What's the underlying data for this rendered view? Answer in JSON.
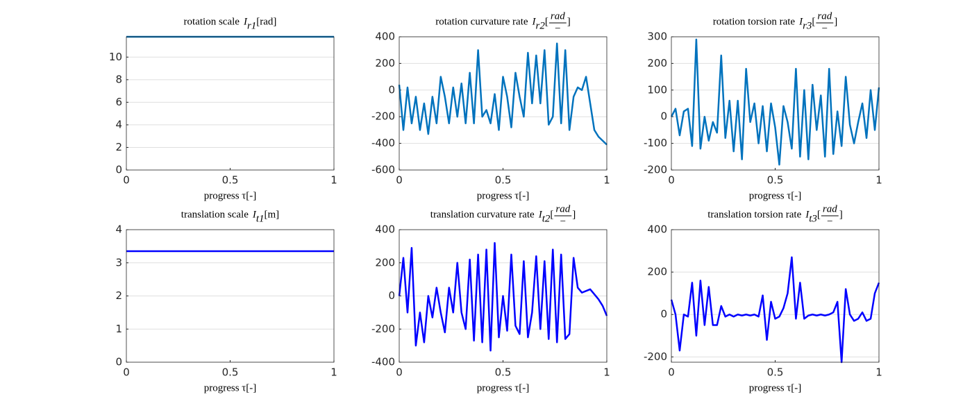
{
  "chart_data": [
    {
      "type": "line",
      "title": "rotation scale",
      "symbol": "I",
      "symbol_subscript": "r1",
      "unit": "[rad]",
      "xlabel": "progress τ[-]",
      "x": [
        0,
        1
      ],
      "series": [
        {
          "color": "#0072bd",
          "values": [
            11.8,
            11.8
          ]
        }
      ],
      "xlim": [
        0,
        1
      ],
      "xticks": [
        0,
        0.5,
        1
      ],
      "ylim": [
        0,
        11.8
      ],
      "yticks": [
        0,
        2,
        4,
        6,
        8,
        10
      ],
      "grid": "y"
    },
    {
      "type": "line",
      "title": "rotation curvature rate",
      "symbol": "I",
      "symbol_subscript": "r2",
      "unit": {
        "open": "[",
        "numerator": "rad",
        "denominator": "−",
        "close": "]"
      },
      "xlabel": "progress τ[-]",
      "x": [
        0,
        0.02,
        0.04,
        0.06,
        0.08,
        0.1,
        0.12,
        0.14,
        0.16,
        0.18,
        0.2,
        0.22,
        0.24,
        0.26,
        0.28,
        0.3,
        0.32,
        0.34,
        0.36,
        0.38,
        0.4,
        0.42,
        0.44,
        0.46,
        0.48,
        0.5,
        0.52,
        0.54,
        0.56,
        0.58,
        0.6,
        0.62,
        0.64,
        0.66,
        0.68,
        0.7,
        0.72,
        0.74,
        0.76,
        0.78,
        0.8,
        0.82,
        0.84,
        0.86,
        0.88,
        0.9,
        0.92,
        0.94,
        0.96,
        0.98,
        1
      ],
      "series": [
        {
          "color": "#0072bd",
          "values": [
            40,
            -300,
            20,
            -250,
            -50,
            -300,
            -100,
            -330,
            -50,
            -250,
            100,
            -50,
            -250,
            20,
            -200,
            50,
            -250,
            130,
            -250,
            300,
            -200,
            -150,
            -250,
            -30,
            -300,
            100,
            -50,
            -280,
            130,
            -50,
            -200,
            280,
            -100,
            260,
            -100,
            300,
            -260,
            -200,
            350,
            -250,
            300,
            -300,
            -50,
            20,
            0,
            100,
            -100,
            -300,
            -350,
            -380,
            -410
          ]
        }
      ],
      "xlim": [
        0,
        1
      ],
      "xticks": [
        0,
        0.5,
        1
      ],
      "ylim": [
        -600,
        400
      ],
      "yticks": [
        -600,
        -400,
        -200,
        0,
        200,
        400
      ],
      "grid": "y"
    },
    {
      "type": "line",
      "title": "rotation torsion rate",
      "symbol": "I",
      "symbol_subscript": "r3",
      "unit": {
        "open": "[",
        "numerator": "rad",
        "denominator": "−",
        "close": "]"
      },
      "xlabel": "progress τ[-]",
      "x": [
        0,
        0.02,
        0.04,
        0.06,
        0.08,
        0.1,
        0.12,
        0.14,
        0.16,
        0.18,
        0.2,
        0.22,
        0.24,
        0.26,
        0.28,
        0.3,
        0.32,
        0.34,
        0.36,
        0.38,
        0.4,
        0.42,
        0.44,
        0.46,
        0.48,
        0.5,
        0.52,
        0.54,
        0.56,
        0.58,
        0.6,
        0.62,
        0.64,
        0.66,
        0.68,
        0.7,
        0.72,
        0.74,
        0.76,
        0.78,
        0.8,
        0.82,
        0.84,
        0.86,
        0.88,
        0.9,
        0.92,
        0.94,
        0.96,
        0.98,
        1
      ],
      "series": [
        {
          "color": "#0072bd",
          "values": [
            0,
            30,
            -70,
            20,
            30,
            -110,
            290,
            -120,
            0,
            -90,
            -20,
            -60,
            230,
            -80,
            60,
            -130,
            60,
            -160,
            180,
            -20,
            50,
            -100,
            40,
            -130,
            50,
            -40,
            -180,
            40,
            -20,
            -120,
            180,
            -150,
            100,
            -160,
            120,
            -50,
            80,
            -150,
            180,
            -140,
            20,
            -110,
            150,
            -30,
            -100,
            -20,
            50,
            -80,
            100,
            -50,
            110
          ]
        }
      ],
      "xlim": [
        0,
        1
      ],
      "xticks": [
        0,
        0.5,
        1
      ],
      "ylim": [
        -200,
        300
      ],
      "yticks": [
        -200,
        -100,
        0,
        100,
        200,
        300
      ],
      "grid": "y"
    },
    {
      "type": "line",
      "title": "translation scale",
      "symbol": "I",
      "symbol_subscript": "t1",
      "unit": "[m]",
      "xlabel": "progress τ[-]",
      "x": [
        0,
        1
      ],
      "series": [
        {
          "color": "#0000ff",
          "values": [
            3.35,
            3.35
          ]
        }
      ],
      "xlim": [
        0,
        1
      ],
      "xticks": [
        0,
        0.5,
        1
      ],
      "ylim": [
        0,
        4
      ],
      "yticks": [
        0,
        1,
        2,
        3,
        4
      ],
      "grid": "y"
    },
    {
      "type": "line",
      "title": "translation curvature rate",
      "symbol": "I",
      "symbol_subscript": "t2",
      "unit": {
        "open": "[",
        "numerator": "rad",
        "denominator": "−",
        "close": "]"
      },
      "xlabel": "progress τ[-]",
      "x": [
        0,
        0.02,
        0.04,
        0.06,
        0.08,
        0.1,
        0.12,
        0.14,
        0.16,
        0.18,
        0.2,
        0.22,
        0.24,
        0.26,
        0.28,
        0.3,
        0.32,
        0.34,
        0.36,
        0.38,
        0.4,
        0.42,
        0.44,
        0.46,
        0.48,
        0.5,
        0.52,
        0.54,
        0.56,
        0.58,
        0.6,
        0.62,
        0.64,
        0.66,
        0.68,
        0.7,
        0.72,
        0.74,
        0.76,
        0.78,
        0.8,
        0.82,
        0.84,
        0.86,
        0.88,
        0.9,
        0.92,
        0.94,
        0.96,
        0.98,
        1
      ],
      "series": [
        {
          "color": "#0000ff",
          "values": [
            0,
            230,
            -100,
            290,
            -300,
            -100,
            -280,
            0,
            -130,
            50,
            -100,
            -220,
            50,
            -100,
            200,
            -100,
            -200,
            220,
            -270,
            250,
            -280,
            280,
            -330,
            320,
            -250,
            0,
            -210,
            250,
            -180,
            -230,
            210,
            -250,
            -100,
            240,
            -200,
            210,
            -260,
            280,
            -280,
            250,
            -260,
            -230,
            230,
            50,
            20,
            30,
            40,
            10,
            -20,
            -60,
            -120
          ]
        }
      ],
      "xlim": [
        0,
        1
      ],
      "xticks": [
        0,
        0.5,
        1
      ],
      "ylim": [
        -400,
        400
      ],
      "yticks": [
        -400,
        -200,
        0,
        200,
        400
      ],
      "grid": "y"
    },
    {
      "type": "line",
      "title": "translation torsion rate",
      "symbol": "I",
      "symbol_subscript": "t3",
      "unit": {
        "open": "[",
        "numerator": "rad",
        "denominator": "−",
        "close": "]"
      },
      "xlabel": "progress τ[-]",
      "x": [
        0,
        0.02,
        0.04,
        0.06,
        0.08,
        0.1,
        0.12,
        0.14,
        0.16,
        0.18,
        0.2,
        0.22,
        0.24,
        0.26,
        0.28,
        0.3,
        0.32,
        0.34,
        0.36,
        0.38,
        0.4,
        0.42,
        0.44,
        0.46,
        0.48,
        0.5,
        0.52,
        0.54,
        0.56,
        0.58,
        0.6,
        0.62,
        0.64,
        0.66,
        0.68,
        0.7,
        0.72,
        0.74,
        0.76,
        0.78,
        0.8,
        0.82,
        0.84,
        0.86,
        0.88,
        0.9,
        0.92,
        0.94,
        0.96,
        0.98,
        1
      ],
      "series": [
        {
          "color": "#0000ff",
          "values": [
            70,
            0,
            -170,
            0,
            -10,
            150,
            -100,
            160,
            -50,
            130,
            -50,
            -50,
            40,
            -10,
            0,
            -10,
            0,
            -5,
            0,
            -5,
            0,
            -10,
            90,
            -120,
            60,
            -20,
            -10,
            30,
            100,
            270,
            -20,
            150,
            -20,
            -5,
            0,
            -5,
            0,
            -5,
            0,
            10,
            60,
            -225,
            120,
            0,
            -30,
            -20,
            10,
            -30,
            -20,
            100,
            150
          ]
        }
      ],
      "xlim": [
        0,
        1
      ],
      "xticks": [
        0,
        0.5,
        1
      ],
      "ylim": [
        -225,
        400
      ],
      "yticks": [
        -200,
        0,
        200,
        400
      ],
      "grid": "y"
    }
  ]
}
